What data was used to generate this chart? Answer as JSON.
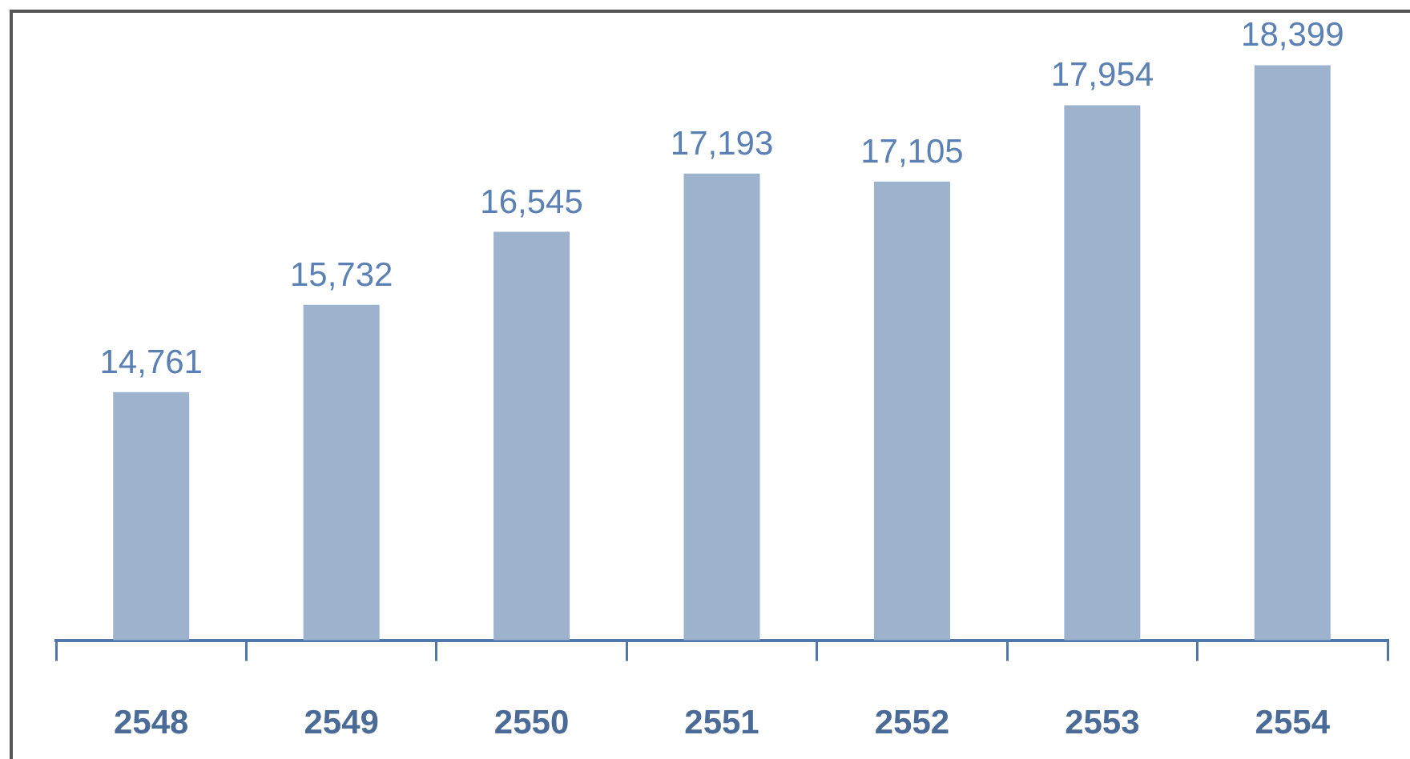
{
  "chart_data": {
    "type": "bar",
    "categories": [
      "2548",
      "2549",
      "2550",
      "2551",
      "2552",
      "2553",
      "2554"
    ],
    "values": [
      14761,
      15732,
      16545,
      17193,
      17105,
      17954,
      18399
    ],
    "value_labels": [
      "14,761",
      "15,732",
      "16,545",
      "17,193",
      "17,105",
      "17,954",
      "18,399"
    ],
    "color": "#9db2cd",
    "ylim": [
      12000,
      19000
    ],
    "tick_labels": "x"
  }
}
